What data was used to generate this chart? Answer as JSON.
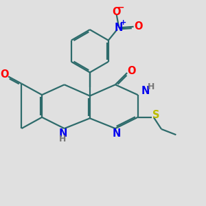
{
  "bg_color": "#e0e0e0",
  "bond_color": "#2d6b6b",
  "bond_width": 1.6,
  "dbo": 0.07,
  "atom_colors": {
    "N": "#0000ee",
    "O": "#ff0000",
    "S": "#bbbb00",
    "C": "#2d6b6b"
  }
}
